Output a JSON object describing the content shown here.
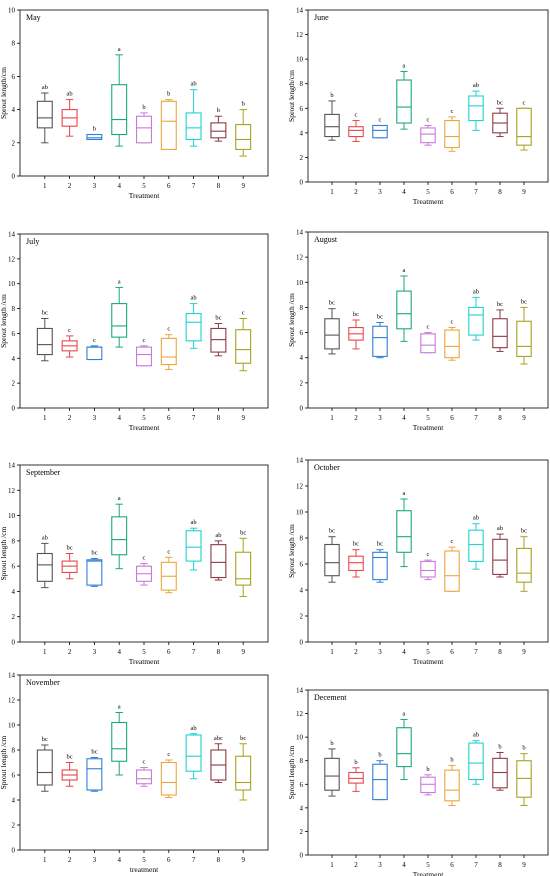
{
  "chart_data": [
    {
      "type": "box",
      "title": "May",
      "xlabel": "Treatment",
      "ylabel": "Sprout length/cm",
      "ylim": [
        0,
        10
      ],
      "yticks": [
        0,
        2,
        4,
        6,
        8,
        10
      ],
      "categories": [
        "1",
        "2",
        "3",
        "4",
        "5",
        "6",
        "7",
        "8",
        "9"
      ],
      "boxes": [
        {
          "whislo": 2.0,
          "q1": 2.9,
          "med": 3.5,
          "q3": 4.5,
          "whishi": 5.0,
          "letter": "ab"
        },
        {
          "whislo": 2.4,
          "q1": 3.0,
          "med": 3.5,
          "q3": 4.0,
          "whishi": 4.6,
          "letter": "ab"
        },
        {
          "whislo": 2.2,
          "q1": 2.2,
          "med": 2.3,
          "q3": 2.5,
          "whishi": 2.5,
          "letter": "b"
        },
        {
          "whislo": 1.8,
          "q1": 2.5,
          "med": 3.4,
          "q3": 5.5,
          "whishi": 7.3,
          "letter": "a"
        },
        {
          "whislo": 2.0,
          "q1": 2.0,
          "med": 2.9,
          "q3": 3.6,
          "whishi": 3.8,
          "letter": "b"
        },
        {
          "whislo": 1.6,
          "q1": 1.6,
          "med": 3.3,
          "q3": 4.5,
          "whishi": 4.6,
          "letter": "b"
        },
        {
          "whislo": 1.8,
          "q1": 2.2,
          "med": 2.9,
          "q3": 3.8,
          "whishi": 5.2,
          "letter": "ab"
        },
        {
          "whislo": 2.1,
          "q1": 2.3,
          "med": 2.7,
          "q3": 3.2,
          "whishi": 3.6,
          "letter": "b"
        },
        {
          "whislo": 1.2,
          "q1": 1.6,
          "med": 2.2,
          "q3": 3.1,
          "whishi": 4.0,
          "letter": "b"
        }
      ]
    },
    {
      "type": "box",
      "title": "June",
      "xlabel": "Treatment",
      "ylabel": "Sprout length/cm",
      "ylim": [
        0,
        14
      ],
      "yticks": [
        0,
        2,
        4,
        6,
        8,
        10,
        12,
        14
      ],
      "categories": [
        "1",
        "2",
        "3",
        "4",
        "5",
        "6",
        "7",
        "8",
        "9"
      ],
      "boxes": [
        {
          "whislo": 3.4,
          "q1": 3.7,
          "med": 4.5,
          "q3": 5.5,
          "whishi": 6.6,
          "letter": "b"
        },
        {
          "whislo": 3.3,
          "q1": 3.7,
          "med": 4.2,
          "q3": 4.5,
          "whishi": 5.0,
          "letter": "c"
        },
        {
          "whislo": 3.6,
          "q1": 3.6,
          "med": 4.2,
          "q3": 4.6,
          "whishi": 4.6,
          "letter": "c"
        },
        {
          "whislo": 4.3,
          "q1": 4.8,
          "med": 6.1,
          "q3": 8.3,
          "whishi": 9.0,
          "letter": "a"
        },
        {
          "whislo": 3.0,
          "q1": 3.2,
          "med": 3.9,
          "q3": 4.4,
          "whishi": 4.6,
          "letter": "c"
        },
        {
          "whislo": 2.5,
          "q1": 2.8,
          "med": 3.7,
          "q3": 5.0,
          "whishi": 5.3,
          "letter": "c"
        },
        {
          "whislo": 4.2,
          "q1": 5.0,
          "med": 6.2,
          "q3": 7.0,
          "whishi": 7.4,
          "letter": "ab"
        },
        {
          "whislo": 3.7,
          "q1": 4.0,
          "med": 4.8,
          "q3": 5.6,
          "whishi": 6.0,
          "letter": "bc"
        },
        {
          "whislo": 2.6,
          "q1": 3.0,
          "med": 3.7,
          "q3": 6.0,
          "whishi": 6.0,
          "letter": "c"
        }
      ]
    },
    {
      "type": "box",
      "title": "July",
      "xlabel": "Treatment",
      "ylabel": "Sprout length /cm",
      "ylim": [
        0,
        14
      ],
      "yticks": [
        0,
        2,
        4,
        6,
        8,
        10,
        12,
        14
      ],
      "categories": [
        "1",
        "2",
        "3",
        "4",
        "5",
        "6",
        "7",
        "8",
        "9"
      ],
      "boxes": [
        {
          "whislo": 3.8,
          "q1": 4.3,
          "med": 5.1,
          "q3": 6.4,
          "whishi": 7.2,
          "letter": "bc"
        },
        {
          "whislo": 4.1,
          "q1": 4.6,
          "med": 5.0,
          "q3": 5.4,
          "whishi": 5.8,
          "letter": "c"
        },
        {
          "whislo": 3.9,
          "q1": 3.9,
          "med": 4.9,
          "q3": 4.9,
          "whishi": 5.0,
          "letter": "c"
        },
        {
          "whislo": 4.9,
          "q1": 5.7,
          "med": 6.6,
          "q3": 8.4,
          "whishi": 9.7,
          "letter": "a"
        },
        {
          "whislo": 3.4,
          "q1": 3.4,
          "med": 4.3,
          "q3": 4.9,
          "whishi": 5.0,
          "letter": "c"
        },
        {
          "whislo": 3.1,
          "q1": 3.5,
          "med": 4.1,
          "q3": 5.6,
          "whishi": 5.9,
          "letter": "c"
        },
        {
          "whislo": 4.8,
          "q1": 5.4,
          "med": 6.9,
          "q3": 7.6,
          "whishi": 8.4,
          "letter": "ab"
        },
        {
          "whislo": 4.2,
          "q1": 4.5,
          "med": 5.5,
          "q3": 6.4,
          "whishi": 6.8,
          "letter": "bc"
        },
        {
          "whislo": 3.0,
          "q1": 3.6,
          "med": 4.7,
          "q3": 6.3,
          "whishi": 7.2,
          "letter": "c"
        }
      ]
    },
    {
      "type": "box",
      "title": "August",
      "xlabel": "Treatment",
      "ylabel": "Sprout length /cm",
      "ylim": [
        0,
        14
      ],
      "yticks": [
        0,
        2,
        4,
        6,
        8,
        10,
        12,
        14
      ],
      "categories": [
        "1",
        "2",
        "3",
        "4",
        "5",
        "6",
        "7",
        "8",
        "9"
      ],
      "boxes": [
        {
          "whislo": 4.3,
          "q1": 4.7,
          "med": 5.8,
          "q3": 7.1,
          "whishi": 7.9,
          "letter": "bc"
        },
        {
          "whislo": 4.7,
          "q1": 5.4,
          "med": 5.9,
          "q3": 6.4,
          "whishi": 7.0,
          "letter": "bc"
        },
        {
          "whislo": 4.0,
          "q1": 4.1,
          "med": 5.6,
          "q3": 6.5,
          "whishi": 6.8,
          "letter": "bc"
        },
        {
          "whislo": 5.3,
          "q1": 6.3,
          "med": 7.5,
          "q3": 9.3,
          "whishi": 10.5,
          "letter": "a"
        },
        {
          "whislo": 4.4,
          "q1": 4.4,
          "med": 5.0,
          "q3": 5.9,
          "whishi": 6.0,
          "letter": "c"
        },
        {
          "whislo": 3.8,
          "q1": 4.0,
          "med": 4.9,
          "q3": 6.2,
          "whishi": 6.4,
          "letter": "c"
        },
        {
          "whislo": 5.4,
          "q1": 5.8,
          "med": 7.4,
          "q3": 8.0,
          "whishi": 8.8,
          "letter": "ab"
        },
        {
          "whislo": 4.5,
          "q1": 4.8,
          "med": 5.7,
          "q3": 7.1,
          "whishi": 7.8,
          "letter": "bc"
        },
        {
          "whislo": 3.5,
          "q1": 4.1,
          "med": 4.9,
          "q3": 6.9,
          "whishi": 8.0,
          "letter": "bc"
        }
      ]
    },
    {
      "type": "box",
      "title": "September",
      "xlabel": "Treatment",
      "ylabel": "Sprout length /cm",
      "ylim": [
        0,
        14
      ],
      "yticks": [
        0,
        2,
        4,
        6,
        8,
        10,
        12,
        14
      ],
      "categories": [
        "1",
        "2",
        "3",
        "4",
        "5",
        "6",
        "7",
        "8",
        "9"
      ],
      "boxes": [
        {
          "whislo": 4.3,
          "q1": 4.8,
          "med": 6.1,
          "q3": 7.0,
          "whishi": 7.8,
          "letter": "ab"
        },
        {
          "whislo": 5.0,
          "q1": 5.5,
          "med": 6.0,
          "q3": 6.4,
          "whishi": 7.0,
          "letter": "bc"
        },
        {
          "whislo": 4.4,
          "q1": 4.5,
          "med": 6.4,
          "q3": 6.5,
          "whishi": 6.6,
          "letter": "bc"
        },
        {
          "whislo": 5.8,
          "q1": 6.9,
          "med": 8.1,
          "q3": 9.9,
          "whishi": 10.9,
          "letter": "a"
        },
        {
          "whislo": 4.5,
          "q1": 4.8,
          "med": 5.4,
          "q3": 6.0,
          "whishi": 6.2,
          "letter": "c"
        },
        {
          "whislo": 3.9,
          "q1": 4.1,
          "med": 5.2,
          "q3": 6.3,
          "whishi": 6.7,
          "letter": "c"
        },
        {
          "whislo": 5.7,
          "q1": 6.4,
          "med": 7.5,
          "q3": 8.8,
          "whishi": 9.0,
          "letter": "ab"
        },
        {
          "whislo": 4.9,
          "q1": 5.1,
          "med": 6.3,
          "q3": 7.7,
          "whishi": 8.0,
          "letter": "ab"
        },
        {
          "whislo": 3.6,
          "q1": 4.5,
          "med": 5.0,
          "q3": 7.1,
          "whishi": 8.2,
          "letter": "bc"
        }
      ]
    },
    {
      "type": "box",
      "title": "October",
      "xlabel": "Treatment",
      "ylabel": "Sprout length /cm",
      "ylim": [
        0,
        14
      ],
      "yticks": [
        0,
        2,
        4,
        6,
        8,
        10,
        12,
        14
      ],
      "categories": [
        "1",
        "2",
        "3",
        "4",
        "5",
        "6",
        "7",
        "8",
        "9"
      ],
      "boxes": [
        {
          "whislo": 4.6,
          "q1": 5.1,
          "med": 6.1,
          "q3": 7.5,
          "whishi": 8.1,
          "letter": "bc"
        },
        {
          "whislo": 5.0,
          "q1": 5.5,
          "med": 6.1,
          "q3": 6.6,
          "whishi": 7.1,
          "letter": "bc"
        },
        {
          "whislo": 4.6,
          "q1": 4.8,
          "med": 6.5,
          "q3": 6.9,
          "whishi": 7.1,
          "letter": "bc"
        },
        {
          "whislo": 5.8,
          "q1": 6.9,
          "med": 8.1,
          "q3": 10.1,
          "whishi": 11.0,
          "letter": "a"
        },
        {
          "whislo": 4.8,
          "q1": 5.0,
          "med": 5.5,
          "q3": 6.2,
          "whishi": 6.3,
          "letter": "c"
        },
        {
          "whislo": 3.9,
          "q1": 3.9,
          "med": 5.1,
          "q3": 7.0,
          "whishi": 7.3,
          "letter": "c"
        },
        {
          "whislo": 5.6,
          "q1": 6.2,
          "med": 7.5,
          "q3": 8.6,
          "whishi": 9.1,
          "letter": "ab"
        },
        {
          "whislo": 5.0,
          "q1": 5.2,
          "med": 6.3,
          "q3": 7.9,
          "whishi": 8.3,
          "letter": "ab"
        },
        {
          "whislo": 3.9,
          "q1": 4.6,
          "med": 5.3,
          "q3": 7.2,
          "whishi": 8.1,
          "letter": "bc"
        }
      ]
    },
    {
      "type": "box",
      "title": "November",
      "xlabel": "treatment",
      "ylabel": "Sprout length /cm",
      "ylim": [
        0,
        14
      ],
      "yticks": [
        0,
        2,
        4,
        6,
        8,
        10,
        12,
        14
      ],
      "categories": [
        "1",
        "2",
        "3",
        "4",
        "5",
        "6",
        "7",
        "8",
        "9"
      ],
      "boxes": [
        {
          "whislo": 4.7,
          "q1": 5.2,
          "med": 6.2,
          "q3": 8.0,
          "whishi": 8.4,
          "letter": "bc"
        },
        {
          "whislo": 5.1,
          "q1": 5.6,
          "med": 6.0,
          "q3": 6.4,
          "whishi": 7.0,
          "letter": "bc"
        },
        {
          "whislo": 4.7,
          "q1": 4.8,
          "med": 6.5,
          "q3": 7.3,
          "whishi": 7.4,
          "letter": "bc"
        },
        {
          "whislo": 6.0,
          "q1": 7.1,
          "med": 8.1,
          "q3": 10.2,
          "whishi": 11.0,
          "letter": "a"
        },
        {
          "whislo": 5.1,
          "q1": 5.3,
          "med": 5.7,
          "q3": 6.4,
          "whishi": 6.6,
          "letter": "c"
        },
        {
          "whislo": 4.2,
          "q1": 4.4,
          "med": 5.4,
          "q3": 7.0,
          "whishi": 7.2,
          "letter": "c"
        },
        {
          "whislo": 5.7,
          "q1": 6.3,
          "med": 7.5,
          "q3": 9.2,
          "whishi": 9.3,
          "letter": "ab"
        },
        {
          "whislo": 5.4,
          "q1": 5.6,
          "med": 6.8,
          "q3": 8.0,
          "whishi": 8.5,
          "letter": "abc"
        },
        {
          "whislo": 4.0,
          "q1": 4.8,
          "med": 5.4,
          "q3": 7.5,
          "whishi": 8.5,
          "letter": "bc"
        }
      ]
    },
    {
      "type": "box",
      "title": "Decement",
      "xlabel": "Treatment",
      "ylabel": "Sprout length /cm",
      "ylim": [
        0,
        14
      ],
      "yticks": [
        0,
        2,
        4,
        6,
        8,
        10,
        12,
        14
      ],
      "categories": [
        "1",
        "2",
        "3",
        "4",
        "5",
        "6",
        "7",
        "8",
        "9"
      ],
      "boxes": [
        {
          "whislo": 5.0,
          "q1": 5.5,
          "med": 6.7,
          "q3": 8.2,
          "whishi": 9.0,
          "letter": "b"
        },
        {
          "whislo": 5.4,
          "q1": 6.1,
          "med": 6.5,
          "q3": 7.0,
          "whishi": 7.4,
          "letter": "b"
        },
        {
          "whislo": 4.7,
          "q1": 4.7,
          "med": 6.4,
          "q3": 7.7,
          "whishi": 8.0,
          "letter": "b"
        },
        {
          "whislo": 6.4,
          "q1": 7.5,
          "med": 8.6,
          "q3": 10.8,
          "whishi": 11.5,
          "letter": "a"
        },
        {
          "whislo": 5.1,
          "q1": 5.3,
          "med": 6.0,
          "q3": 6.6,
          "whishi": 6.8,
          "letter": "b"
        },
        {
          "whislo": 4.2,
          "q1": 4.6,
          "med": 5.5,
          "q3": 7.2,
          "whishi": 7.6,
          "letter": "b"
        },
        {
          "whislo": 6.0,
          "q1": 6.4,
          "med": 7.8,
          "q3": 9.5,
          "whishi": 9.7,
          "letter": "ab"
        },
        {
          "whislo": 5.5,
          "q1": 5.7,
          "med": 7.0,
          "q3": 8.2,
          "whishi": 8.7,
          "letter": "b"
        },
        {
          "whislo": 4.2,
          "q1": 4.9,
          "med": 6.5,
          "q3": 8.0,
          "whishi": 8.6,
          "letter": "b"
        }
      ]
    }
  ],
  "colors": [
    "#555555",
    "#e8444a",
    "#2f7fd6",
    "#1aa87f",
    "#c77ad9",
    "#eba63c",
    "#1fd1d1",
    "#8b3a42",
    "#a8a21e"
  ]
}
